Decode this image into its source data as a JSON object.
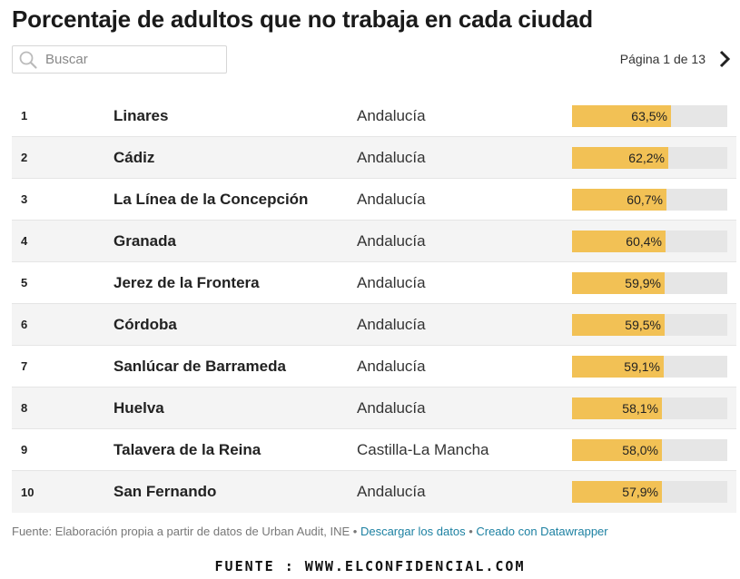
{
  "title": "Porcentaje de adultos que no trabaja en cada ciudad",
  "search": {
    "placeholder": "Buscar",
    "icon": "search-icon"
  },
  "pagination": {
    "label": "Página 1 de 13",
    "next_icon": "chevron-right-icon"
  },
  "colors": {
    "bar": "#f2c155",
    "track": "#e6e6e6",
    "link": "#1d81a2"
  },
  "chart_data": {
    "type": "table",
    "title": "Porcentaje de adultos que no trabaja en cada ciudad",
    "columns": [
      "rank",
      "city",
      "region",
      "value"
    ],
    "value_range": [
      0,
      100
    ],
    "rows": [
      {
        "rank": "1",
        "city": "Linares",
        "region": "Andalucía",
        "value": 63.5,
        "label": "63,5%"
      },
      {
        "rank": "2",
        "city": "Cádiz",
        "region": "Andalucía",
        "value": 62.2,
        "label": "62,2%"
      },
      {
        "rank": "3",
        "city": "La Línea de la Concepción",
        "region": "Andalucía",
        "value": 60.7,
        "label": "60,7%"
      },
      {
        "rank": "4",
        "city": "Granada",
        "region": "Andalucía",
        "value": 60.4,
        "label": "60,4%"
      },
      {
        "rank": "5",
        "city": "Jerez de la Frontera",
        "region": "Andalucía",
        "value": 59.9,
        "label": "59,9%"
      },
      {
        "rank": "6",
        "city": "Córdoba",
        "region": "Andalucía",
        "value": 59.5,
        "label": "59,5%"
      },
      {
        "rank": "7",
        "city": "Sanlúcar de Barrameda",
        "region": "Andalucía",
        "value": 59.1,
        "label": "59,1%"
      },
      {
        "rank": "8",
        "city": "Huelva",
        "region": "Andalucía",
        "value": 58.1,
        "label": "58,1%"
      },
      {
        "rank": "9",
        "city": "Talavera de la Reina",
        "region": "Castilla-La Mancha",
        "value": 58.0,
        "label": "58,0%"
      },
      {
        "rank": "10",
        "city": "San Fernando",
        "region": "Andalucía",
        "value": 57.9,
        "label": "57,9%"
      }
    ]
  },
  "footer": {
    "source_text": "Fuente: Elaboración propia a partir de datos de Urban Audit, INE",
    "separator": " • ",
    "download_link": "Descargar los datos",
    "datawrapper_link": "Creado con Datawrapper"
  },
  "image_source": "FUENTE : WWW.ELCONFIDENCIAL.COM"
}
